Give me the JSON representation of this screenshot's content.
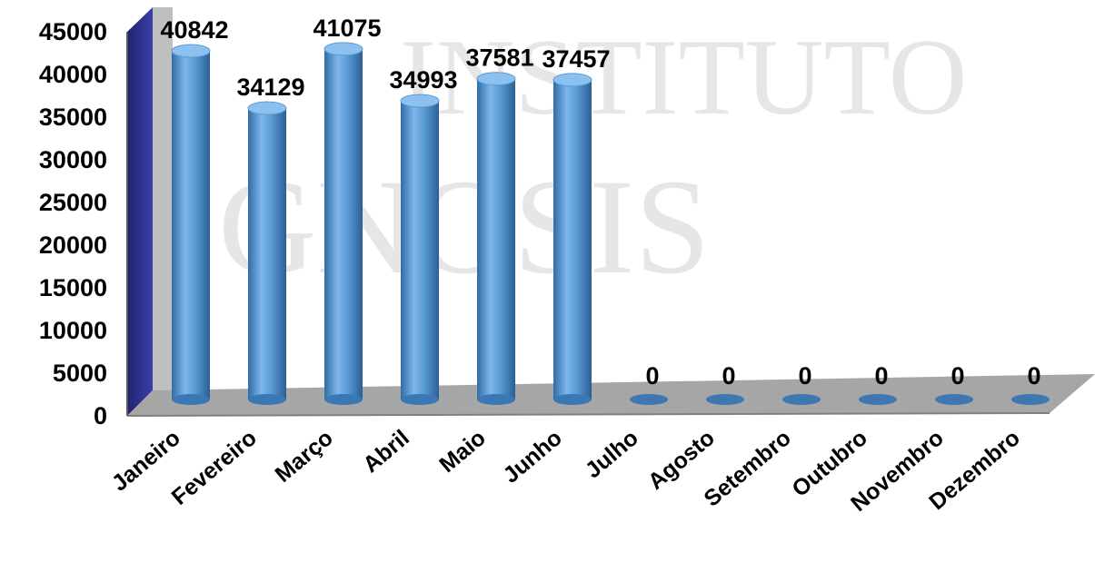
{
  "watermark": {
    "line1": "INSTITUTO",
    "line2": "GNOSIS"
  },
  "chart_data": {
    "type": "bar",
    "categories": [
      "Janeiro",
      "Fevereiro",
      "Março",
      "Abril",
      "Maio",
      "Junho",
      "Julho",
      "Agosto",
      "Setembro",
      "Outubro",
      "Novembro",
      "Dezembro"
    ],
    "values": [
      40842,
      34129,
      41075,
      34993,
      37581,
      37457,
      0,
      0,
      0,
      0,
      0,
      0
    ],
    "data_labels": [
      "40842",
      "34129",
      "41075",
      "34993",
      "37581",
      "37457",
      "0",
      "0",
      "0",
      "0",
      "0",
      "0"
    ],
    "y_ticks": [
      "0",
      "5000",
      "10000",
      "15000",
      "20000",
      "25000",
      "30000",
      "35000",
      "40000",
      "45000"
    ],
    "ylim": [
      0,
      45000
    ],
    "title": "",
    "xlabel": "",
    "ylabel": "",
    "bar_style": "3d-cylinder",
    "colors": {
      "bar": "#5b9bd5",
      "bar_dark": "#2f6ca6",
      "wall": "#2b2f8f",
      "floor": "#a6a6a6"
    },
    "grid": false,
    "legend": "none"
  }
}
